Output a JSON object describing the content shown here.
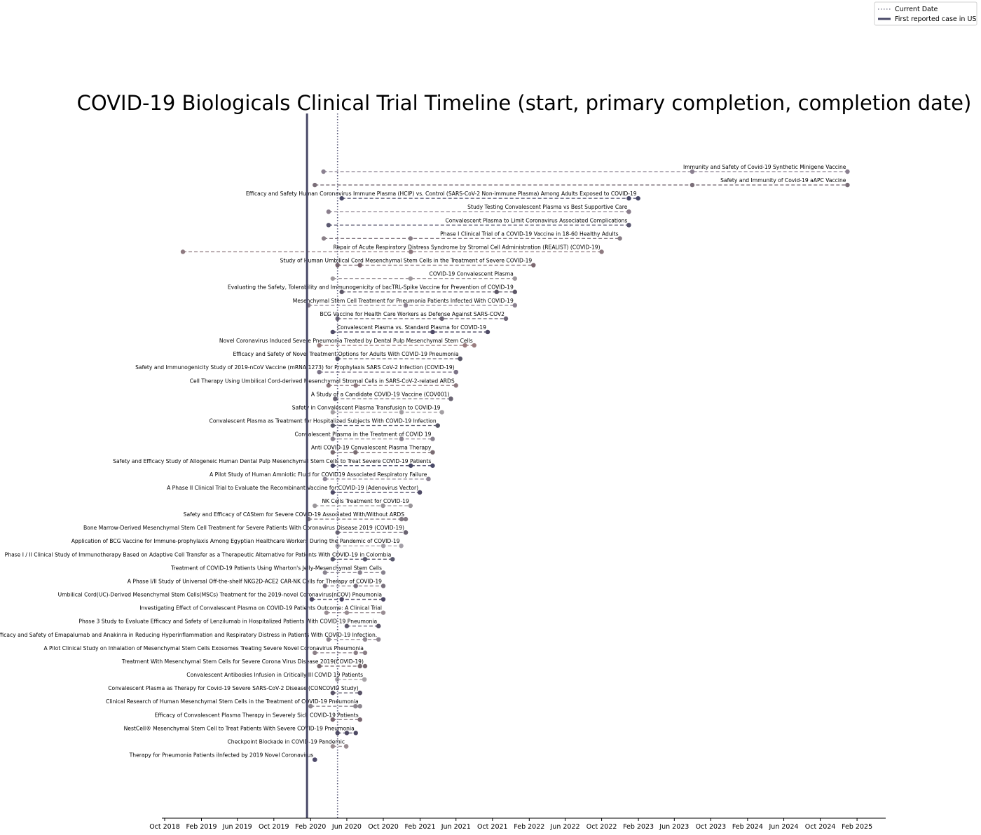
{
  "chart_data": {
    "type": "timeline",
    "title": "COVID-19 Biologicals Clinical Trial Timeline (start, primary completion, completion date)",
    "x_axis": {
      "type": "date",
      "range": [
        "2018-09-01",
        "2025-05-01"
      ],
      "tick_labels": [
        "Oct 2018",
        "Feb 2019",
        "Jun 2019",
        "Oct 2019",
        "Feb 2020",
        "Jun 2020",
        "Oct 2020",
        "Feb 2021",
        "Jun 2021",
        "Oct 2021",
        "Feb 2022",
        "Jun 2022",
        "Oct 2022",
        "Feb 2023",
        "Jun 2023",
        "Oct 2023",
        "Feb 2024",
        "Jun 2024",
        "Oct 2024",
        "Feb 2025"
      ],
      "tick_dates": [
        "2018-10-01",
        "2019-02-01",
        "2019-06-01",
        "2019-10-01",
        "2020-02-01",
        "2020-06-01",
        "2020-10-01",
        "2021-02-01",
        "2021-06-01",
        "2021-10-01",
        "2022-02-01",
        "2022-06-01",
        "2022-10-01",
        "2023-02-01",
        "2023-06-01",
        "2023-10-01",
        "2024-02-01",
        "2024-06-01",
        "2024-10-01",
        "2025-02-01"
      ]
    },
    "reference_lines": [
      {
        "name": "Current Date",
        "date": "2020-05-01",
        "style": "dotted",
        "color": "#5a5a7a"
      },
      {
        "name": "First reported case in US",
        "date": "2020-01-20",
        "style": "solid",
        "color": "#4a4a68"
      }
    ],
    "legend": {
      "placement": "top-right",
      "entries": [
        "Current Date",
        "First reported case in US"
      ]
    },
    "trials": [
      {
        "name": "Immunity and Safety of Covid-19 Synthetic Minigene Vaccine",
        "start": "2020-03-15",
        "primary_completion": "2023-07-31",
        "completion": "2024-12-31",
        "color": "#8a8090"
      },
      {
        "name": "Safety and Immunity of Covid-19 aAPC Vaccine",
        "start": "2020-02-15",
        "primary_completion": "2023-07-31",
        "completion": "2024-12-31",
        "color": "#7a6e78"
      },
      {
        "name": "Efficacy and Safety Human Coronavirus Immune Plasma (HCIP) vs. Control (SARS-CoV-2 Non-immune Plasma) Among Adults Exposed to COVID-19",
        "start": "2020-05-15",
        "primary_completion": "2022-12-31",
        "completion": "2023-01-31",
        "color": "#4a4a68"
      },
      {
        "name": "Study Testing Convalescent Plasma vs Best Supportive Care",
        "start": "2020-04-01",
        "primary_completion": "2022-12-31",
        "completion": "2022-12-31",
        "color": "#8a7e8c"
      },
      {
        "name": "Convalescent Plasma to Limit Coronavirus Associated Complications",
        "start": "2020-04-01",
        "primary_completion": "2022-12-31",
        "completion": "2022-12-31",
        "color": "#5a5870"
      },
      {
        "name": "Phase I Clinical Trial of a COVID-19 Vaccine in 18-60 Healthy Adults",
        "start": "2020-03-16",
        "primary_completion": "2020-12-31",
        "completion": "2022-12-01",
        "color": "#8a8088"
      },
      {
        "name": "Repair of Acute Respiratory Distress Syndrome by Stromal Cell Administration (REALIST) (COVID-19)",
        "start": "2018-12-01",
        "primary_completion": "2021-01-01",
        "completion": "2022-10-01",
        "color": "#8e7a80"
      },
      {
        "name": "Study of Human Umbilical Cord Mesenchymal Stem Cells in the Treatment of Severe COVID-19",
        "start": "2020-05-01",
        "primary_completion": "2020-07-15",
        "completion": "2022-02-15",
        "color": "#7c6870"
      },
      {
        "name": "COVID-19 Convalescent Plasma",
        "start": "2020-04-15",
        "primary_completion": "2020-12-31",
        "completion": "2021-12-15",
        "color": "#a09a9e"
      },
      {
        "name": "Evaluating the Safety, Tolerability and Immunogenicity of bacTRL-Spike Vaccine for Prevention of COVID-19",
        "start": "2020-05-15",
        "primary_completion": "2021-10-15",
        "completion": "2021-12-15",
        "color": "#5e5868"
      },
      {
        "name": "Mesenchymal Stem Cell Treatment for Pneumonia Patients Infected With COVID-19",
        "start": "2020-01-25",
        "primary_completion": "2020-12-15",
        "completion": "2021-12-15",
        "color": "#8c8290"
      },
      {
        "name": "BCG Vaccine for Health Care Workers as Defense Against SARS-COV2",
        "start": "2020-05-01",
        "primary_completion": "2021-04-15",
        "completion": "2021-11-15",
        "color": "#6e6878"
      },
      {
        "name": "Convalescent Plasma vs. Standard Plasma for COVID-19",
        "start": "2020-04-15",
        "primary_completion": "2021-03-15",
        "completion": "2021-09-15",
        "color": "#4e4a66"
      },
      {
        "name": "Novel Coronavirus Induced Severe Pneumonia Treated by Dental Pulp Mesenchymal Stem Cells",
        "start": "2020-03-01",
        "primary_completion": "2021-07-01",
        "completion": "2021-08-01",
        "color": "#9a7e80"
      },
      {
        "name": "Efficacy and Safety of Novel Treatment Options for Adults With COVID-19 Pneumonia",
        "start": "2020-05-01",
        "primary_completion": "2021-06-15",
        "completion": "2021-06-15",
        "color": "#5a5868"
      },
      {
        "name": "Safety and Immunogenicity Study of 2019-nCoV Vaccine (mRNA-1273) for Prophylaxis SARS CoV-2 Infection (COVID-19)",
        "start": "2020-03-01",
        "primary_completion": "2021-06-01",
        "completion": "2021-06-01",
        "color": "#7c7488"
      },
      {
        "name": "Cell Therapy Using Umbilical Cord-derived Mesenchymal Stromal Cells in SARS-CoV-2-related ARDS",
        "start": "2020-04-01",
        "primary_completion": "2020-07-01",
        "completion": "2021-06-01",
        "color": "#8e7a80"
      },
      {
        "name": "A Study of a Candidate COVID-19 Vaccine (COV001)",
        "start": "2020-04-23",
        "primary_completion": "2021-05-15",
        "completion": "2021-05-15",
        "color": "#6a6472"
      },
      {
        "name": "Safety in Convalescent Plasma Transfusion to COVID-19",
        "start": "2020-04-15",
        "primary_completion": "2020-12-01",
        "completion": "2021-04-15",
        "color": "#a4a0a4"
      },
      {
        "name": "Convalescent Plasma as Treatment for Hospitalized Subjects With COVID-19 Infection",
        "start": "2020-04-15",
        "primary_completion": "2021-04-01",
        "completion": "2021-04-01",
        "color": "#5a5a6a"
      },
      {
        "name": "Convalescent Plasma in the Treatment of COVID 19",
        "start": "2020-04-15",
        "primary_completion": "2020-12-01",
        "completion": "2021-03-15",
        "color": "#8a8490"
      },
      {
        "name": "Anti COVID-19 Convalescent Plasma Therapy",
        "start": "2020-04-15",
        "primary_completion": "2020-06-30",
        "completion": "2021-03-15",
        "color": "#7a6c72"
      },
      {
        "name": "Safety and Efficacy Study of Allogeneic Human Dental Pulp Mesenchymal Stem Cells to Treat Severe COVID-19 Patients",
        "start": "2020-04-15",
        "primary_completion": "2021-01-01",
        "completion": "2021-03-15",
        "color": "#4a4a68"
      },
      {
        "name": "A Pilot Study of Human Amniotic Fluid for COVID19 Associated Respiratory Failure",
        "start": "2020-03-20",
        "primary_completion": "2021-03-01",
        "completion": "2021-03-01",
        "color": "#8e8696"
      },
      {
        "name": "A Phase II Clinical Trial to Evaluate the Recombinant Vaccine for COVID-19 (Adenovirus Vector)",
        "start": "2020-04-15",
        "primary_completion": "2021-01-31",
        "completion": "2021-01-31",
        "color": "#4e4a66"
      },
      {
        "name": "NK Cells Treatment for COVID-19",
        "start": "2020-02-15",
        "primary_completion": "2020-09-30",
        "completion": "2020-12-31",
        "color": "#9a969a"
      },
      {
        "name": "Safety and Efficacy of CAStem for Severe COVID-19 Associated With/Without ARDS",
        "start": "2020-01-25",
        "primary_completion": "2020-12-01",
        "completion": "2020-12-15",
        "color": "#867e86"
      },
      {
        "name": "Bone Marrow-Derived Mesenchymal Stem Cell Treatment for Severe Patients With Coronavirus Disease 2019 (COVID-19)",
        "start": "2020-05-01",
        "primary_completion": "2020-12-15",
        "completion": "2020-12-15",
        "color": "#6a6472"
      },
      {
        "name": "Application of BCG Vaccine for Immune-prophylaxis Among Egyptian Healthcare Workers During the Pandemic of COVID-19",
        "start": "2020-05-01",
        "primary_completion": "2020-10-01",
        "completion": "2020-11-30",
        "color": "#a4a0a8"
      },
      {
        "name": "Phase I / II Clinical Study of Immunotherapy Based on Adaptive Cell Transfer as a Therapeutic Alternative for Patients With COVID-19 in Colombia",
        "start": "2020-04-15",
        "primary_completion": "2020-08-01",
        "completion": "2020-11-01",
        "color": "#5a5a6e"
      },
      {
        "name": "Treatment of COVID-19 Patients Using Wharton's Jelly-Mesenchymal Stem Cells",
        "start": "2020-03-20",
        "primary_completion": "2020-07-15",
        "completion": "2020-10-01",
        "color": "#8a8490"
      },
      {
        "name": "A Phase I/II Study of Universal Off-the-shelf NKG2D-ACE2 CAR-NK Cells for Therapy of COVID-19",
        "start": "2020-03-20",
        "primary_completion": "2020-07-01",
        "completion": "2020-10-01",
        "color": "#7a727e"
      },
      {
        "name": "Umbilical Cord(UC)-Derived Mesenchymal Stem Cells(MSCs) Treatment for the 2019-novel Coronavirus(nCOV) Pneumonia",
        "start": "2020-02-05",
        "primary_completion": "2020-05-15",
        "completion": "2020-10-01",
        "color": "#4e4a66"
      },
      {
        "name": "Investigating Effect of Convalescent Plasma on COVID-19 Patients Outcome: A Clinical Trial",
        "start": "2020-03-25",
        "primary_completion": "2020-06-01",
        "completion": "2020-10-01",
        "color": "#9a8e94"
      },
      {
        "name": "Phase 3 Study to Evaluate Efficacy and Safety of Lenzilumab in Hospitalized Patients With COVID-19 Pneumonia",
        "start": "2020-06-01",
        "primary_completion": "2020-09-15",
        "completion": "2020-09-15",
        "color": "#5e5a6c"
      },
      {
        "name": "Efficacy and Safety of Emapalumab and Anakinra in Reducing Hyperinflammation and Respiratory Distress in Patients With COVID-19 Infection.",
        "start": "2020-04-01",
        "primary_completion": "2020-08-01",
        "completion": "2020-09-15",
        "color": "#928a94"
      },
      {
        "name": "A Pilot Clinical Study on Inhalation of Mesenchymal Stem Cells Exosomes Treating Severe Novel Coronavirus Pneumonia",
        "start": "2020-02-15",
        "primary_completion": "2020-07-01",
        "completion": "2020-08-01",
        "color": "#8c8088"
      },
      {
        "name": "Treatment With Mesenchymal Stem Cells for Severe Corona Virus Disease 2019(COVID-19)",
        "start": "2020-03-01",
        "primary_completion": "2020-07-15",
        "completion": "2020-08-01",
        "color": "#7a6c72"
      },
      {
        "name": "Convalescent Antibodies Infusion in Critically Ill COVID 19 Patients",
        "start": "2020-04-30",
        "primary_completion": "2020-07-30",
        "completion": "2020-07-30",
        "color": "#a8a4a8"
      },
      {
        "name": "Convalescent Plasma as Therapy for Covid-19 Severe SARS-CoV-2 Disease (CONCOVID Study)",
        "start": "2020-04-15",
        "primary_completion": "2020-07-15",
        "completion": "2020-07-15",
        "color": "#5a5468"
      },
      {
        "name": "Clinical Research of Human Mesenchymal Stem Cells in the Treatment of COVID-19 Pneumonia",
        "start": "2020-02-01",
        "primary_completion": "2020-06-30",
        "completion": "2020-07-15",
        "color": "#8e8890"
      },
      {
        "name": "Efficacy of Convalescent Plasma Therapy in Severely Sick COVID-19 Patients",
        "start": "2020-04-15",
        "primary_completion": "2020-07-15",
        "completion": "2020-07-15",
        "color": "#7a6872"
      },
      {
        "name": "NestCell® Mesenchymal Stem Cell to Treat Patients With Severe COVID-19 Pneumonia",
        "start": "2020-05-01",
        "primary_completion": "2020-06-01",
        "completion": "2020-07-01",
        "color": "#4e4a64"
      },
      {
        "name": "Checkpoint Blockade in COVID-19 Pandemic",
        "start": "2020-04-15",
        "primary_completion": "2020-05-30",
        "completion": "2020-05-30",
        "color": "#9a8c90"
      },
      {
        "name": "Therapy for Pneumonia Patients iInfected by 2019 Novel Coronavirus",
        "start": "2020-02-15",
        "primary_completion": "2020-02-15",
        "completion": "2020-02-15",
        "color": "#4e4a6a"
      }
    ]
  }
}
